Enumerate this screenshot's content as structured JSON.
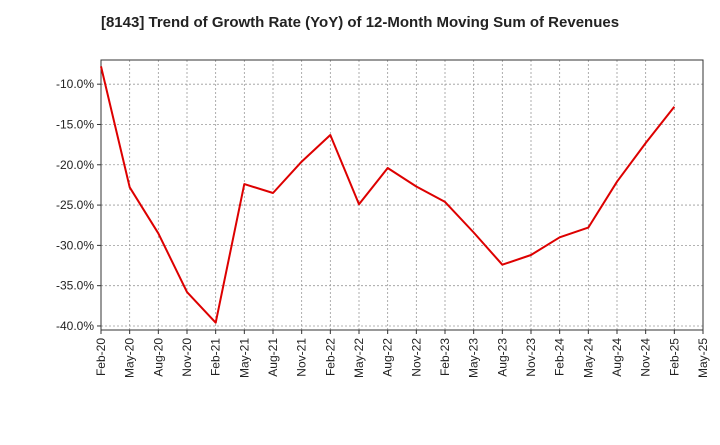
{
  "chart_data": {
    "type": "line",
    "title": "[8143]  Trend of Growth Rate (YoY) of 12-Month Moving Sum of Revenues",
    "xlabel": "",
    "ylabel": "",
    "ylim": [
      -40.5,
      -7.0
    ],
    "yticks": [
      -10.0,
      -15.0,
      -20.0,
      -25.0,
      -30.0,
      -35.0,
      -40.0
    ],
    "ytick_labels": [
      "-10.0%",
      "-15.0%",
      "-20.0%",
      "-25.0%",
      "-30.0%",
      "-35.0%",
      "-40.0%"
    ],
    "x_tick_labels": [
      "Feb-20",
      "May-20",
      "Aug-20",
      "Nov-20",
      "Feb-21",
      "May-21",
      "Aug-21",
      "Nov-21",
      "Feb-22",
      "May-22",
      "Aug-22",
      "Nov-22",
      "Feb-23",
      "May-23",
      "Aug-23",
      "Nov-23",
      "Feb-24",
      "May-24",
      "Aug-24",
      "Nov-24",
      "Feb-25",
      "May-25"
    ],
    "grid": true,
    "line_color": "#dd0000",
    "series": [
      {
        "values": [
          -7.8,
          -22.8,
          -28.5,
          -35.8,
          -39.6,
          -22.4,
          -23.5,
          -19.6,
          -16.3,
          -24.9,
          -20.4,
          -22.7,
          -24.6,
          -28.4,
          -32.4,
          -31.2,
          -29.0,
          -27.8,
          -22.1,
          -17.3,
          -12.8
        ]
      }
    ]
  }
}
